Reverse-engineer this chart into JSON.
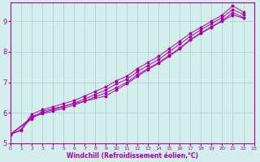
{
  "xlabel": "Windchill (Refroidissement éolien,°C)",
  "background_color": "#d4eeed",
  "grid_color": "#aed4d0",
  "line_color": "#aa00aa",
  "xlim": [
    0,
    23
  ],
  "ylim": [
    5,
    9.6
  ],
  "yticks": [
    5,
    6,
    7,
    8,
    9
  ],
  "xticks": [
    0,
    1,
    2,
    3,
    4,
    5,
    6,
    7,
    8,
    9,
    10,
    11,
    12,
    13,
    14,
    15,
    16,
    17,
    18,
    19,
    20,
    21,
    22,
    23
  ],
  "series": [
    {
      "x": [
        0,
        1,
        2,
        3,
        4,
        5,
        6,
        7,
        8,
        9,
        10,
        11,
        12,
        13,
        14,
        15,
        16,
        17,
        18,
        19,
        20,
        21,
        22
      ],
      "y": [
        5.3,
        5.45,
        5.95,
        6.1,
        6.2,
        6.3,
        6.4,
        6.55,
        6.7,
        6.85,
        7.05,
        7.2,
        7.45,
        7.65,
        7.85,
        8.1,
        8.35,
        8.6,
        8.8,
        9.0,
        9.2,
        9.5,
        9.3
      ]
    },
    {
      "x": [
        0,
        1,
        2,
        3,
        4,
        5,
        6,
        7,
        8,
        9,
        10,
        11,
        12,
        13,
        14,
        15,
        16,
        17,
        18,
        19,
        20,
        21,
        22
      ],
      "y": [
        5.3,
        5.42,
        5.88,
        6.0,
        6.1,
        6.2,
        6.32,
        6.45,
        6.6,
        6.75,
        6.95,
        7.1,
        7.35,
        7.55,
        7.75,
        8.0,
        8.25,
        8.5,
        8.72,
        8.92,
        9.12,
        9.38,
        9.22
      ]
    },
    {
      "x": [
        0,
        2,
        3,
        4,
        5,
        6,
        7,
        8,
        9,
        10,
        11,
        12,
        13,
        14,
        15,
        16,
        17,
        18,
        19,
        20,
        21,
        22
      ],
      "y": [
        5.3,
        5.85,
        5.97,
        6.05,
        6.15,
        6.25,
        6.38,
        6.52,
        6.65,
        6.82,
        7.0,
        7.25,
        7.45,
        7.65,
        7.88,
        8.12,
        8.4,
        8.62,
        8.82,
        9.02,
        9.28,
        9.12
      ]
    },
    {
      "x": [
        0,
        2,
        3,
        9,
        10,
        11,
        12,
        13,
        14,
        15,
        16,
        17,
        18,
        19,
        20,
        21,
        22
      ],
      "y": [
        5.3,
        5.8,
        6.05,
        6.55,
        6.75,
        6.95,
        7.2,
        7.42,
        7.62,
        7.85,
        8.1,
        8.38,
        8.6,
        8.8,
        9.0,
        9.2,
        9.1
      ]
    }
  ]
}
